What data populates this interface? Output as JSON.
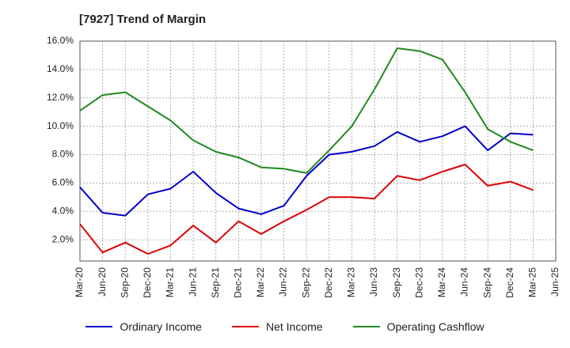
{
  "chart_data": {
    "type": "line",
    "title": "[7927]  Trend of Margin",
    "x": [
      "Mar-20",
      "Jun-20",
      "Sep-20",
      "Dec-20",
      "Mar-21",
      "Jun-21",
      "Sep-21",
      "Dec-21",
      "Mar-22",
      "Jun-22",
      "Sep-22",
      "Dec-22",
      "Mar-23",
      "Jun-23",
      "Sep-23",
      "Dec-23",
      "Mar-24",
      "Jun-24",
      "Sep-24",
      "Dec-24",
      "Mar-25"
    ],
    "xtick_labels": [
      "Mar-20",
      "Jun-20",
      "Sep-20",
      "Dec-20",
      "Mar-21",
      "Jun-21",
      "Sep-21",
      "Dec-21",
      "Mar-22",
      "Jun-22",
      "Sep-22",
      "Dec-22",
      "Mar-23",
      "Jun-23",
      "Sep-23",
      "Dec-23",
      "Mar-24",
      "Jun-24",
      "Sep-24",
      "Dec-24",
      "Mar-25",
      "Jun-25"
    ],
    "ytick_labels": [
      "2.0%",
      "4.0%",
      "6.0%",
      "8.0%",
      "10.0%",
      "12.0%",
      "14.0%",
      "16.0%"
    ],
    "ylim": [
      0.5,
      16.0
    ],
    "grid": true,
    "legend_position": "bottom",
    "series": [
      {
        "name": "Ordinary Income",
        "color": "#0000cc",
        "values": [
          5.7,
          3.9,
          3.7,
          5.2,
          5.6,
          6.8,
          5.3,
          4.2,
          3.8,
          4.4,
          6.5,
          8.0,
          8.2,
          8.6,
          9.6,
          8.9,
          9.3,
          10.0,
          8.3,
          9.5,
          9.4
        ]
      },
      {
        "name": "Net Income",
        "color": "#dd0000",
        "values": [
          3.1,
          1.1,
          1.8,
          1.0,
          1.6,
          3.0,
          1.8,
          3.3,
          2.4,
          3.3,
          4.1,
          5.0,
          5.0,
          4.9,
          6.5,
          6.2,
          6.8,
          7.3,
          5.8,
          6.1,
          5.5
        ]
      },
      {
        "name": "Operating Cashflow",
        "color": "#228822",
        "values": [
          11.1,
          12.2,
          12.4,
          11.4,
          10.4,
          9.0,
          8.2,
          7.8,
          7.1,
          7.0,
          6.7,
          8.3,
          10.0,
          12.6,
          15.5,
          15.3,
          14.7,
          12.4,
          9.8,
          8.9,
          8.3
        ]
      }
    ]
  }
}
